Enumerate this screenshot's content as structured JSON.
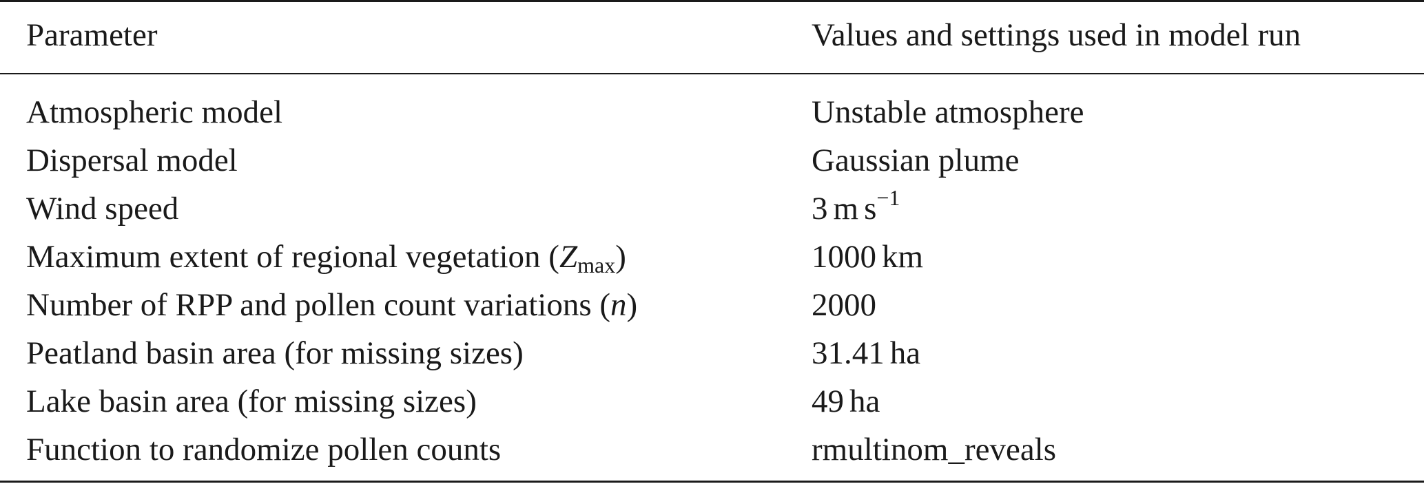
{
  "table": {
    "header": {
      "parameter": "Parameter",
      "values": "Values and settings used in model run"
    },
    "rows": [
      {
        "parameter": "Atmospheric model",
        "value": "Unstable atmosphere"
      },
      {
        "parameter": "Dispersal model",
        "value": "Gaussian plume"
      },
      {
        "parameter": "Wind speed",
        "value_number": "3",
        "value_unit_m": "m",
        "value_unit_s": "s",
        "value_exp": "−1"
      },
      {
        "parameter_prefix": "Maximum extent of regional vegetation (",
        "parameter_symbol": "Z",
        "parameter_sub": "max",
        "parameter_suffix": ")",
        "value_number": "1000",
        "value_unit": "km"
      },
      {
        "parameter_prefix": "Number of RPP and pollen count variations (",
        "parameter_symbol": "n",
        "parameter_suffix": ")",
        "value": "2000"
      },
      {
        "parameter": "Peatland basin area (for missing sizes)",
        "value_number": "31.41",
        "value_unit": "ha"
      },
      {
        "parameter": "Lake basin area (for missing sizes)",
        "value_number": "49",
        "value_unit": "ha"
      },
      {
        "parameter": "Function to randomize pollen counts",
        "value": "rmultinom_reveals"
      }
    ]
  }
}
